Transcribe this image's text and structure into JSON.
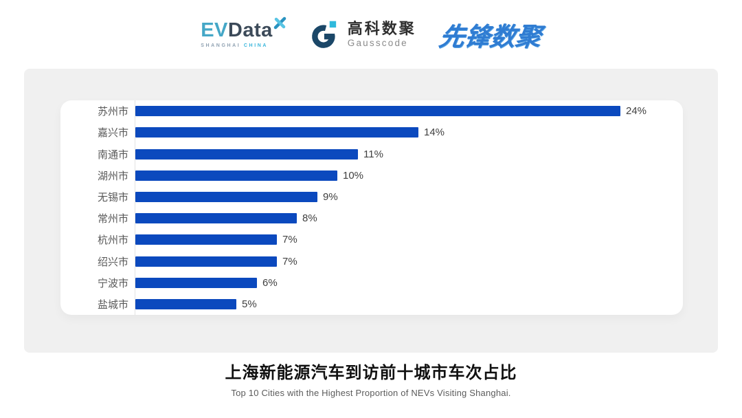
{
  "logos": {
    "evdata": {
      "ev": "EV",
      "data": "Data",
      "sub_left": "SHANGHAI",
      "sub_right": "CHINA"
    },
    "gausscode": {
      "cn": "高科数聚",
      "en": "Gausscode"
    },
    "pioneer": {
      "cn": "先锋数聚"
    }
  },
  "chart_data": {
    "type": "bar",
    "orientation": "horizontal",
    "categories": [
      "苏州市",
      "嘉兴市",
      "南通市",
      "湖州市",
      "无锡市",
      "常州市",
      "杭州市",
      "绍兴市",
      "宁波市",
      "盐城市"
    ],
    "values": [
      24,
      14,
      11,
      10,
      9,
      8,
      7,
      7,
      6,
      5
    ],
    "value_suffix": "%",
    "data_labels": true,
    "grid": false,
    "xlim": [
      0,
      24
    ],
    "title": "上海新能源汽车到访前十城市车次占比",
    "subtitle": "Top 10 Cities with the Highest Proportion of  NEVs Visiting Shanghai."
  },
  "colors": {
    "bar": "#0B49BE",
    "panel_bg": "#F0F0F0",
    "card_bg": "#FFFFFF",
    "axis_line": "#E2E2E2",
    "category_text": "#595959",
    "value_text": "#3F3F3F",
    "title_text": "#111111",
    "subtitle_text": "#5B5B5B",
    "evdata_ev": "#45A7C7",
    "evdata_data": "#3C4A59",
    "gausscode_dark": "#1B4768",
    "gausscode_cyan": "#2FB9DC",
    "pioneer_blue": "#2F7CD2"
  }
}
